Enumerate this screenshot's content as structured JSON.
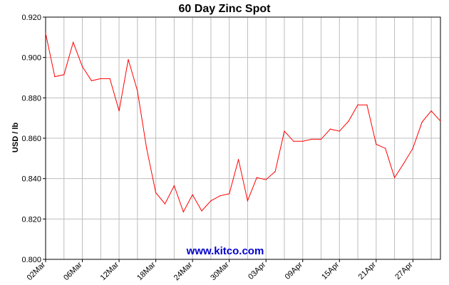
{
  "chart_data": {
    "type": "line",
    "title": "60 Day Zinc Spot",
    "xlabel": "",
    "ylabel": "USD / lb",
    "ylim": [
      0.8,
      0.92
    ],
    "yticks": [
      "0.800",
      "0.820",
      "0.840",
      "0.860",
      "0.880",
      "0.900",
      "0.920"
    ],
    "ytick_values": [
      0.8,
      0.82,
      0.84,
      0.86,
      0.88,
      0.9,
      0.92
    ],
    "xtick_labels": [
      "02Mar",
      "06Mar",
      "12Mar",
      "18Mar",
      "24Mar",
      "30Mar",
      "03Apr",
      "09Apr",
      "15Apr",
      "21Apr",
      "27Apr"
    ],
    "xtick_indices": [
      0,
      4,
      8,
      12,
      16,
      20,
      24,
      28,
      32,
      36,
      40
    ],
    "grid": true,
    "series": [
      {
        "name": "",
        "color": "#ff0000",
        "values": [
          0.912,
          0.8905,
          0.8915,
          0.9075,
          0.8955,
          0.8885,
          0.8895,
          0.8895,
          0.8735,
          0.899,
          0.8835,
          0.855,
          0.833,
          0.8275,
          0.8365,
          0.8235,
          0.832,
          0.824,
          0.829,
          0.8315,
          0.8325,
          0.8495,
          0.829,
          0.8405,
          0.8395,
          0.8435,
          0.8635,
          0.8585,
          0.8585,
          0.8595,
          0.8595,
          0.8645,
          0.8635,
          0.8685,
          0.8765,
          0.8765,
          0.857,
          0.855,
          0.8405,
          0.8475,
          0.855,
          0.868,
          0.8735,
          0.8685
        ]
      }
    ]
  },
  "watermark": "www.kitco.com"
}
